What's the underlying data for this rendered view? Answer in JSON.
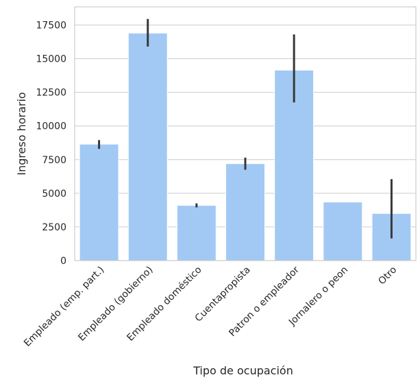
{
  "chart_data": {
    "type": "bar",
    "title": "",
    "xlabel": "Tipo de ocupación",
    "ylabel": "Ingreso horario",
    "categories": [
      "Empleado (emp. part.)",
      "Empleado (gobierno)",
      "Empleado doméstico",
      "Cuentapropista",
      "Patron o empleador",
      "Jornalero o peon",
      "Otro"
    ],
    "values": [
      8650,
      16900,
      4100,
      7200,
      14150,
      4350,
      3500
    ],
    "error_low": [
      8300,
      15900,
      3950,
      6750,
      11750,
      4350,
      1650
    ],
    "error_high": [
      8950,
      17950,
      4250,
      7650,
      16800,
      4350,
      6050
    ],
    "ylim": [
      0,
      18850
    ],
    "yticks": [
      0,
      2500,
      5000,
      7500,
      10000,
      12500,
      15000,
      17500
    ],
    "grid": "y",
    "legend": "none",
    "colors": {
      "bar": "#a1c9f4",
      "error": "#383838",
      "grid": "#cccccc",
      "spine": "#cccccc"
    }
  }
}
